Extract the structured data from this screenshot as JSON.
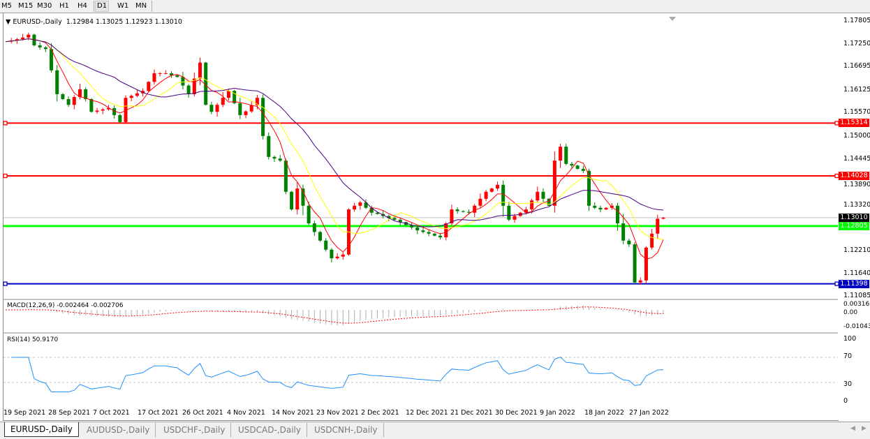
{
  "toolbar": {
    "timeframes": [
      "M5",
      "M15",
      "M30",
      "H1",
      "H4",
      "D1",
      "W1",
      "MN"
    ],
    "active": "D1"
  },
  "header": {
    "symbol": "EURUSD-,Daily",
    "ohlc": "1.12984 1.13025 1.12923 1.13010"
  },
  "price_axis": [
    "1.17805",
    "1.17250",
    "1.16695",
    "1.16125",
    "1.15570",
    "1.15000",
    "1.14445",
    "1.13890",
    "1.13320",
    "1.12210",
    "1.11640",
    "1.11085"
  ],
  "levels": [
    {
      "price": 1.15314,
      "label": "1.15314",
      "color": "#ff0000"
    },
    {
      "price": 1.14028,
      "label": "1.14028",
      "color": "#ff0000"
    },
    {
      "price": 1.12805,
      "label": "1.12805",
      "color": "#00ff00"
    },
    {
      "price": 1.11398,
      "label": "1.11398",
      "color": "#0000c0"
    }
  ],
  "current_price": {
    "price": 1.1301,
    "label": "1.13010",
    "color": "#000000"
  },
  "macd": {
    "label": "MACD(12,26,9) -0.002464 -0.002706",
    "axis": [
      "0.003165",
      "0.00",
      "-0.010431"
    ]
  },
  "rsi": {
    "label": "RSI(14) 50.9170",
    "axis": [
      "100",
      "70",
      "30",
      "0"
    ]
  },
  "dates": [
    "19 Sep 2021",
    "28 Sep 2021",
    "7 Oct 2021",
    "17 Oct 2021",
    "26 Oct 2021",
    "4 Nov 2021",
    "14 Nov 2021",
    "23 Nov 2021",
    "2 Dec 2021",
    "12 Dec 2021",
    "21 Dec 2021",
    "30 Dec 2021",
    "9 Jan 2022",
    "18 Jan 2022",
    "27 Jan 2022"
  ],
  "tabs": [
    "EURUSD-,Daily",
    "AUDUSD-,Daily",
    "USDCHF-,Daily",
    "USDCAD-,Daily",
    "USDCNH-,Daily"
  ],
  "chart_data": {
    "type": "candlestick",
    "symbol": "EURUSD-,Daily",
    "ylim": [
      1.11085,
      1.17805
    ],
    "up_color": "#ff0000",
    "down_color": "#008000",
    "ma_colors": [
      "#ff0000",
      "#ffff00",
      "#4b0082"
    ],
    "closes": [
      1.173,
      1.1733,
      1.1736,
      1.174,
      1.1747,
      1.1721,
      1.1716,
      1.1712,
      1.166,
      1.1602,
      1.159,
      1.1576,
      1.1595,
      1.1614,
      1.159,
      1.1559,
      1.1562,
      1.1565,
      1.1568,
      1.1551,
      1.1534,
      1.1593,
      1.1598,
      1.1604,
      1.161,
      1.1632,
      1.1653,
      1.1653,
      1.1653,
      1.1648,
      1.1644,
      1.1623,
      1.1602,
      1.164,
      1.1679,
      1.1576,
      1.1559,
      1.1576,
      1.1593,
      1.161,
      1.158,
      1.1551,
      1.156,
      1.1575,
      1.1593,
      1.15,
      1.1449,
      1.1445,
      1.144,
      1.1364,
      1.1321,
      1.1372,
      1.133,
      1.1287,
      1.1266,
      1.1245,
      1.1223,
      1.1202,
      1.1206,
      1.1211,
      1.1321,
      1.133,
      1.1338,
      1.1325,
      1.1313,
      1.131,
      1.1305,
      1.13,
      1.1296,
      1.129,
      1.1283,
      1.1277,
      1.127,
      1.1266,
      1.1262,
      1.1257,
      1.1253,
      1.1287,
      1.1321,
      1.1317,
      1.1315,
      1.1313,
      1.133,
      1.1347,
      1.1364,
      1.1372,
      1.1381,
      1.133,
      1.1296,
      1.1305,
      1.1313,
      1.1321,
      1.1343,
      1.1364,
      1.1347,
      1.133,
      1.144,
      1.1474,
      1.1432,
      1.1428,
      1.142,
      1.1415,
      1.133,
      1.1325,
      1.1321,
      1.1325,
      1.133,
      1.1287,
      1.1245,
      1.1236,
      1.1143,
      1.1148,
      1.1228,
      1.1262,
      1.12984,
      1.1301
    ]
  }
}
